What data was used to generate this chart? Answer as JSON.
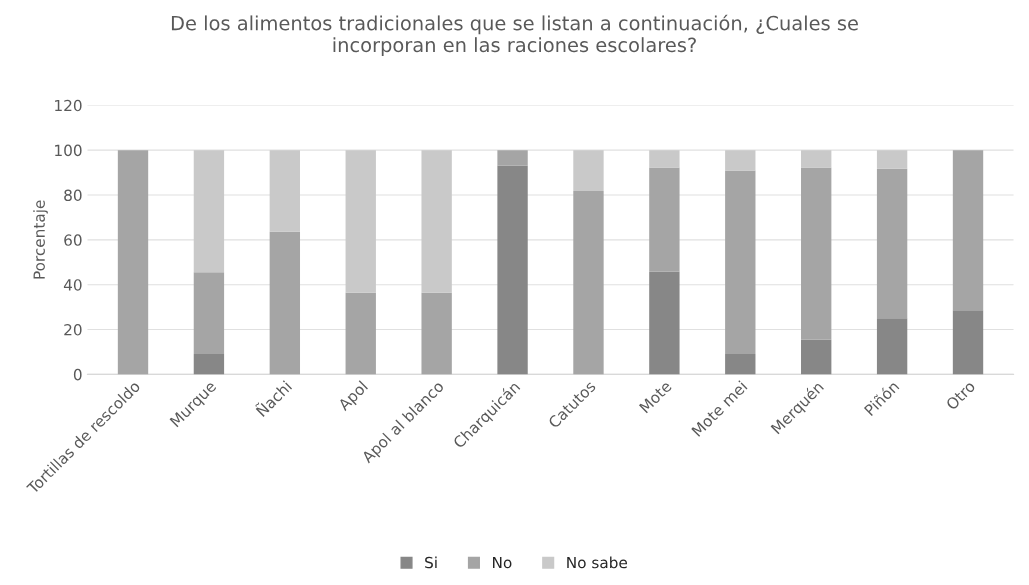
{
  "chart_data": {
    "type": "bar",
    "stacked": true,
    "title": "De los alimentos tradicionales que se listan a continuación, ¿Cuales se\nincorporan en las raciones escolares?",
    "ylabel": "Porcentaje",
    "categories": [
      "Tortillas de rescoldo",
      "Murque",
      "Ñachi",
      "Apol",
      "Apol al blanco",
      "Charquicán",
      "Catutos",
      "Mote",
      "Mote mei",
      "Merquén",
      "Piñón",
      "Otro"
    ],
    "series": [
      {
        "name": "Si",
        "color": "#878787",
        "values": [
          0,
          9.1,
          0,
          0,
          0,
          93.2,
          0,
          45.8,
          9.1,
          15.4,
          25,
          28.6
        ]
      },
      {
        "name": "No",
        "color": "#a5a5a5",
        "values": [
          100,
          36.4,
          63.6,
          36.4,
          36.4,
          6.8,
          81.8,
          46.5,
          81.8,
          76.9,
          66.7,
          71.4
        ]
      },
      {
        "name": "No sabe",
        "color": "#c9c9c9",
        "values": [
          0,
          54.5,
          36.4,
          63.6,
          63.6,
          0,
          18.2,
          7.7,
          9.1,
          7.7,
          8.3,
          0
        ]
      }
    ],
    "ylim": [
      0,
      120
    ],
    "yticks": [
      0,
      20,
      40,
      60,
      80,
      100,
      120
    ],
    "grid": "y",
    "legend": "bottom"
  }
}
